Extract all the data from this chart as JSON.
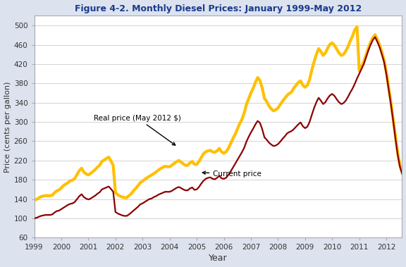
{
  "title": "Figure 4-2. Monthly Diesel Prices: January 1999-May 2012",
  "xlabel": "Year",
  "ylabel": "Price (cents per gallon)",
  "ylim": [
    60,
    520
  ],
  "yticks": [
    60,
    100,
    140,
    180,
    220,
    260,
    300,
    340,
    380,
    420,
    460,
    500
  ],
  "xlim_start": 1999.0,
  "xlim_end": 2012.58,
  "xticks": [
    1999,
    2000,
    2001,
    2002,
    2003,
    2004,
    2005,
    2006,
    2007,
    2008,
    2009,
    2010,
    2011,
    2012
  ],
  "current_price_color": "#8B0000",
  "real_price_color": "#FFC000",
  "background_color": "#dce3ef",
  "plot_bg_color": "#ffffff",
  "title_color": "#1a3a8a",
  "axis_label_color": "#333333",
  "annotation_current": "Current price",
  "annotation_real": "Real price (May 2012 $)",
  "current_price": [
    100,
    101,
    103,
    105,
    106,
    107,
    107,
    107,
    108,
    112,
    115,
    116,
    119,
    122,
    125,
    128,
    130,
    131,
    134,
    140,
    146,
    150,
    144,
    141,
    139,
    141,
    144,
    147,
    151,
    154,
    160,
    162,
    164,
    166,
    161,
    155,
    113,
    110,
    108,
    106,
    105,
    105,
    108,
    112,
    116,
    120,
    124,
    129,
    131,
    134,
    137,
    140,
    141,
    144,
    146,
    149,
    151,
    153,
    155,
    155,
    155,
    157,
    160,
    163,
    165,
    163,
    160,
    158,
    158,
    162,
    164,
    159,
    160,
    165,
    172,
    178,
    182,
    184,
    185,
    182,
    181,
    184,
    188,
    183,
    182,
    184,
    190,
    197,
    205,
    213,
    221,
    229,
    237,
    246,
    259,
    269,
    278,
    286,
    295,
    302,
    298,
    285,
    268,
    263,
    257,
    253,
    250,
    251,
    254,
    259,
    265,
    270,
    276,
    279,
    281,
    285,
    290,
    295,
    299,
    291,
    287,
    290,
    300,
    315,
    329,
    341,
    350,
    344,
    337,
    341,
    349,
    355,
    358,
    354,
    347,
    341,
    337,
    339,
    344,
    352,
    361,
    369,
    379,
    390,
    400,
    410,
    420,
    434,
    448,
    460,
    470,
    476,
    466,
    455,
    440,
    424,
    399,
    368,
    337,
    303,
    266,
    232,
    207,
    192,
    181,
    175,
    172,
    172,
    175,
    180,
    187,
    194,
    199,
    207,
    214,
    220,
    225,
    228,
    231,
    234,
    236,
    241,
    246,
    251,
    256,
    262,
    270,
    277,
    283,
    288,
    293,
    297,
    299,
    303,
    309,
    313,
    320,
    327,
    334,
    340,
    347,
    352,
    358,
    363,
    366,
    376,
    387,
    393,
    399,
    407,
    409,
    413,
    416,
    419,
    416,
    413,
    381,
    379,
    383,
    389,
    394,
    399,
    401,
    404,
    406,
    409,
    411,
    413,
    411,
    408,
    406,
    404,
    402,
    401,
    400,
    403,
    406,
    409,
    413,
    416,
    416,
    414,
    412,
    410,
    407,
    405,
    403,
    402,
    400,
    403,
    407,
    411,
    415,
    418,
    420,
    416,
    413,
    410,
    407,
    405,
    403
  ],
  "real_price": [
    138,
    139,
    142,
    145,
    146,
    147,
    147,
    147,
    148,
    153,
    157,
    159,
    163,
    168,
    171,
    174,
    178,
    179,
    183,
    191,
    199,
    204,
    196,
    192,
    190,
    193,
    197,
    201,
    206,
    210,
    218,
    221,
    224,
    227,
    219,
    210,
    153,
    149,
    146,
    144,
    143,
    143,
    147,
    151,
    157,
    162,
    168,
    174,
    177,
    181,
    184,
    187,
    190,
    193,
    196,
    200,
    203,
    206,
    208,
    207,
    207,
    210,
    214,
    217,
    220,
    217,
    213,
    210,
    210,
    215,
    218,
    212,
    212,
    218,
    226,
    234,
    238,
    240,
    241,
    238,
    237,
    240,
    245,
    238,
    235,
    238,
    245,
    255,
    265,
    274,
    285,
    296,
    305,
    318,
    336,
    348,
    360,
    370,
    382,
    392,
    386,
    370,
    349,
    342,
    333,
    327,
    323,
    325,
    329,
    336,
    343,
    349,
    355,
    359,
    362,
    370,
    376,
    382,
    385,
    376,
    372,
    376,
    388,
    408,
    425,
    440,
    452,
    446,
    438,
    443,
    453,
    461,
    464,
    459,
    451,
    443,
    438,
    440,
    447,
    456,
    468,
    478,
    491,
    497,
    406,
    415,
    425,
    439,
    453,
    465,
    475,
    481,
    471,
    460,
    445,
    428,
    403,
    372,
    341,
    306,
    270,
    236,
    210,
    195,
    184,
    178,
    175,
    175,
    178,
    182,
    188,
    195,
    200,
    208,
    215,
    221,
    226,
    229,
    232,
    235,
    238,
    242,
    248,
    253,
    258,
    264,
    272,
    279,
    285,
    289,
    295,
    299,
    301,
    305,
    311,
    316,
    323,
    330,
    337,
    343,
    350,
    356,
    362,
    367,
    370,
    380,
    390,
    397,
    403,
    411,
    413,
    417,
    420,
    423,
    420,
    416,
    384,
    382,
    386,
    392,
    398,
    403,
    405,
    407,
    410,
    413,
    415,
    417,
    415,
    412,
    410,
    407,
    405,
    404,
    403,
    406,
    409,
    412,
    416,
    419,
    419,
    417,
    415,
    412,
    410,
    408,
    406,
    404,
    403,
    405,
    409,
    413,
    417,
    420,
    422,
    418,
    415,
    412,
    409,
    407,
    405
  ]
}
